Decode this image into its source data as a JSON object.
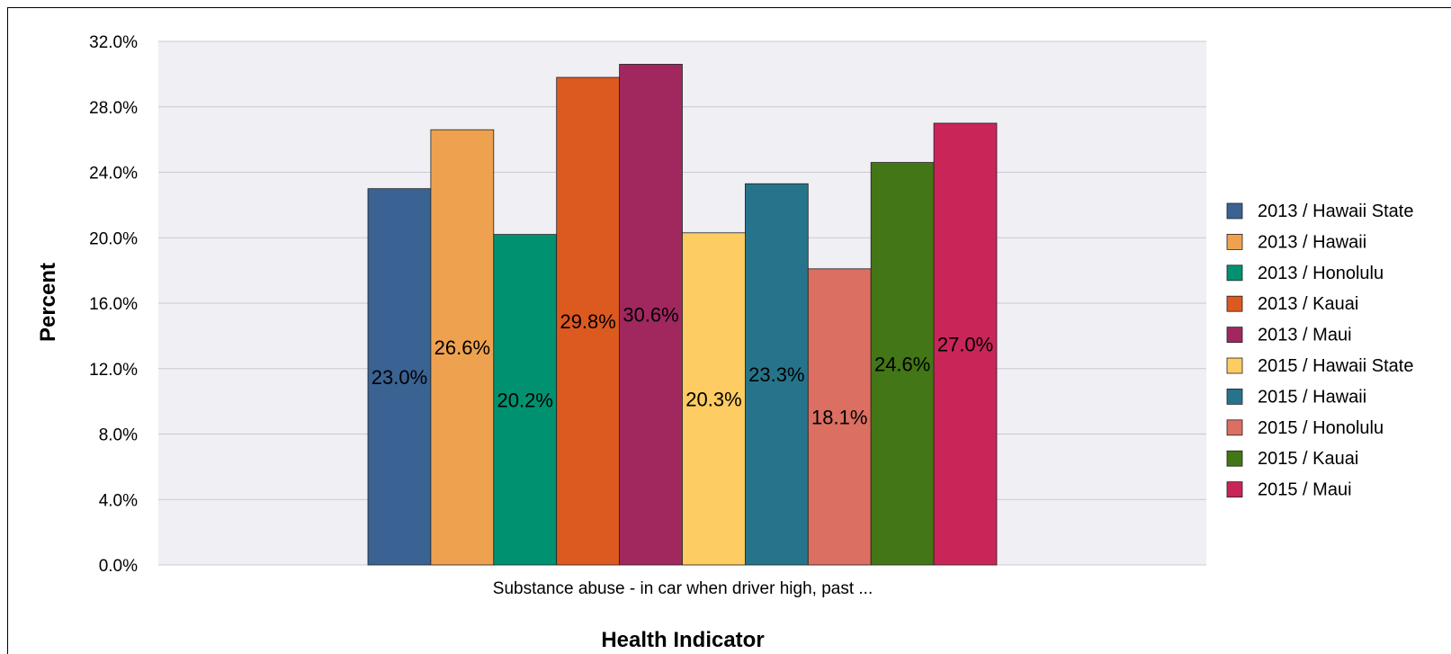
{
  "chart_data": {
    "type": "bar",
    "categories": [
      "Substance abuse - in car when driver high, past ..."
    ],
    "series": [
      {
        "name": "2013 / Hawaii State",
        "values": [
          23.0
        ],
        "color": "#3a6293"
      },
      {
        "name": "2013 / Hawaii",
        "values": [
          26.6
        ],
        "color": "#eea250"
      },
      {
        "name": "2013 / Honolulu",
        "values": [
          20.2
        ],
        "color": "#009270"
      },
      {
        "name": "2013 / Kauai",
        "values": [
          29.8
        ],
        "color": "#dc5920"
      },
      {
        "name": "2013 / Maui",
        "values": [
          30.6
        ],
        "color": "#a0285e"
      },
      {
        "name": "2015 / Hawaii State",
        "values": [
          20.3
        ],
        "color": "#fdcc62"
      },
      {
        "name": "2015 / Hawaii",
        "values": [
          23.3
        ],
        "color": "#26748b"
      },
      {
        "name": "2015 / Honolulu",
        "values": [
          18.1
        ],
        "color": "#db6f62"
      },
      {
        "name": "2015 / Kauai",
        "values": [
          24.6
        ],
        "color": "#437616"
      },
      {
        "name": "2015 / Maui",
        "values": [
          27.0
        ],
        "color": "#c92558"
      }
    ],
    "data_labels": [
      "23.0%",
      "26.6%",
      "20.2%",
      "29.8%",
      "30.6%",
      "20.3%",
      "23.3%",
      "18.1%",
      "24.6%",
      "27.0%"
    ],
    "xlabel": "Health Indicator",
    "ylabel": "Percent",
    "ylim": [
      0,
      32
    ],
    "yticks": [
      0,
      4,
      8,
      12,
      16,
      20,
      24,
      28,
      32
    ],
    "ytick_labels": [
      "0.0%",
      "4.0%",
      "8.0%",
      "12.0%",
      "16.0%",
      "20.0%",
      "24.0%",
      "28.0%",
      "32.0%"
    ],
    "grid": true,
    "legend_position": "right",
    "plot_background": "#efeff4"
  }
}
